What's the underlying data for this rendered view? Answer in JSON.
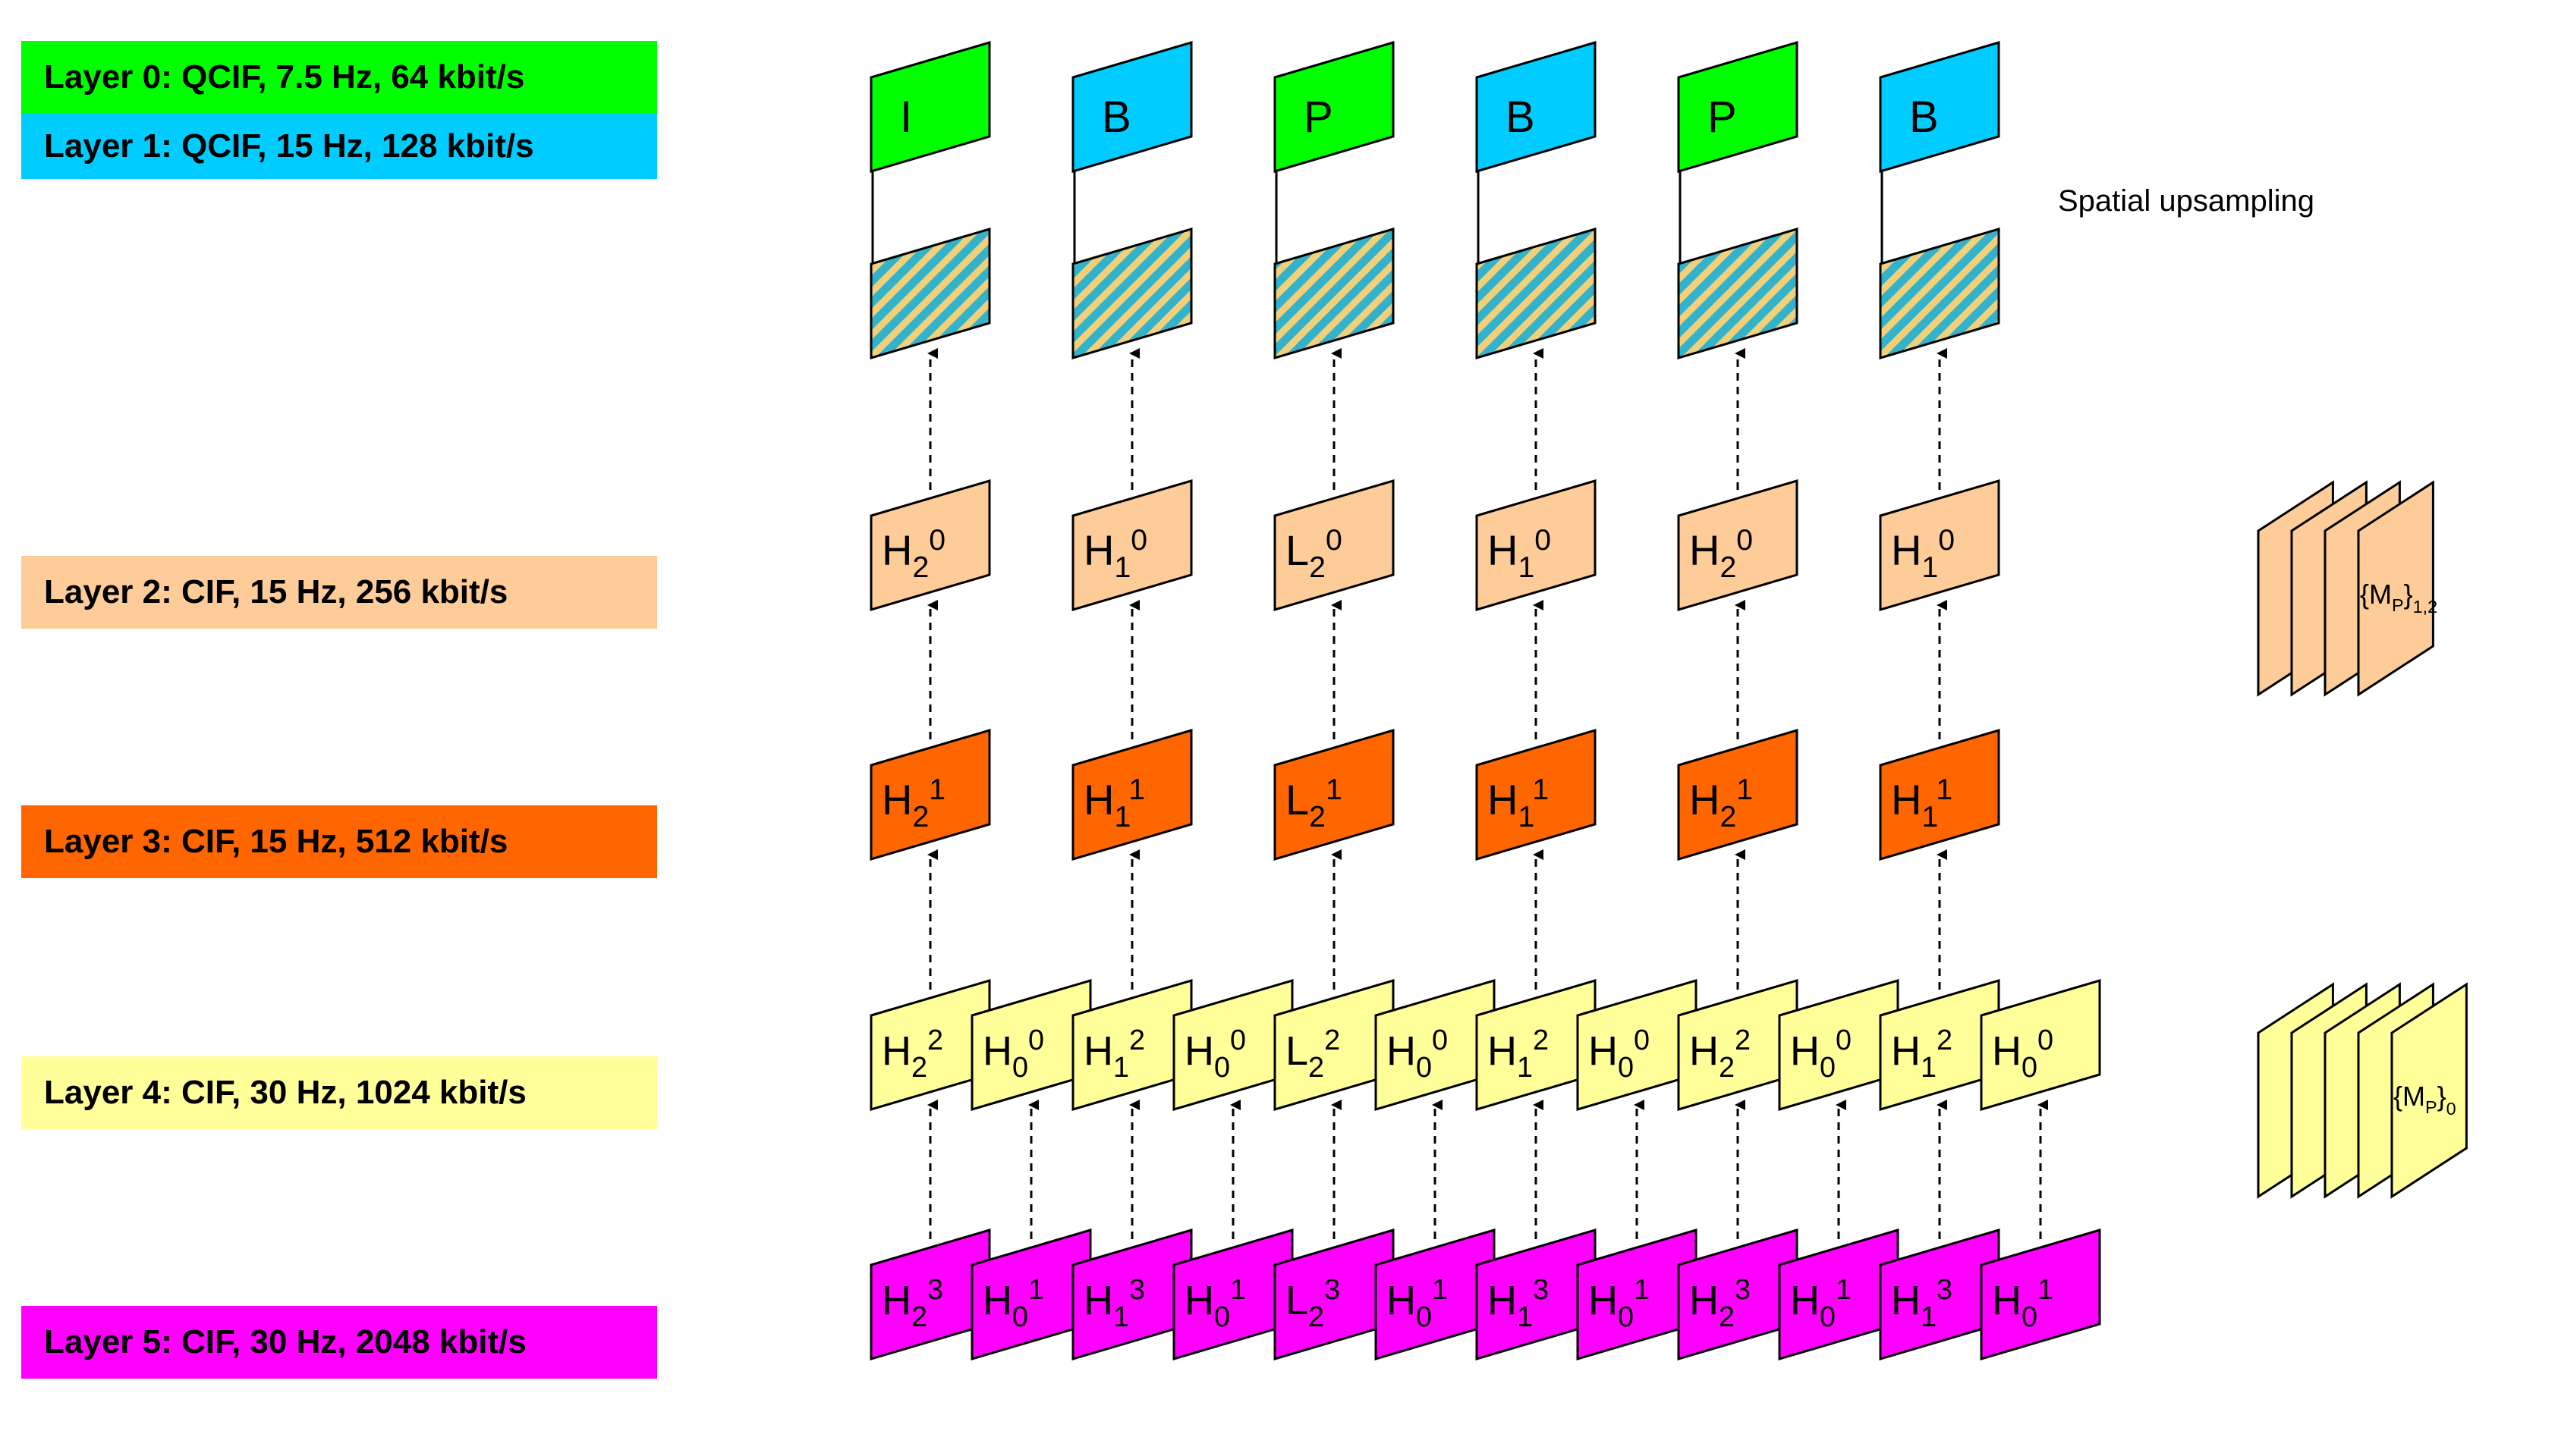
{
  "colors": {
    "layer0": "#00ff00",
    "layer1": "#00ccff",
    "layer2": "#fdcc99",
    "layer3": "#ff6600",
    "layer4": "#ffff99",
    "layer5": "#ff00ff",
    "upsample_hatch_base": "#33b2cc",
    "upsample_hatch_stripe": "#f2d07a",
    "stroke": "#000000"
  },
  "legend": [
    {
      "label": "Layer 0: QCIF, 7.5 Hz, 64 kbit/s",
      "color_key": "layer0"
    },
    {
      "label": "Layer 1: QCIF, 15 Hz, 128 kbit/s",
      "color_key": "layer1"
    },
    {
      "label": "Layer 2: CIF, 15 Hz, 256 kbit/s",
      "color_key": "layer2"
    },
    {
      "label": "Layer 3: CIF, 15 Hz, 512 kbit/s",
      "color_key": "layer3"
    },
    {
      "label": "Layer 4: CIF, 30 Hz, 1024 kbit/s",
      "color_key": "layer4"
    },
    {
      "label": "Layer 5: CIF, 30 Hz, 2048 kbit/s",
      "color_key": "layer5"
    }
  ],
  "qcif_frames": [
    {
      "label": "I",
      "layer": 0
    },
    {
      "label": "B",
      "layer": 1
    },
    {
      "label": "P",
      "layer": 0
    },
    {
      "label": "B",
      "layer": 1
    },
    {
      "label": "P",
      "layer": 0
    },
    {
      "label": "B",
      "layer": 1
    }
  ],
  "upsampling_label": "Spatial upsampling",
  "layer2_frames": [
    {
      "base": "H",
      "sub": "2",
      "sup": "0"
    },
    {
      "base": "H",
      "sub": "1",
      "sup": "0"
    },
    {
      "base": "L",
      "sub": "2",
      "sup": "0"
    },
    {
      "base": "H",
      "sub": "1",
      "sup": "0"
    },
    {
      "base": "H",
      "sub": "2",
      "sup": "0"
    },
    {
      "base": "H",
      "sub": "1",
      "sup": "0"
    }
  ],
  "layer3_frames": [
    {
      "base": "H",
      "sub": "2",
      "sup": "1"
    },
    {
      "base": "H",
      "sub": "1",
      "sup": "1"
    },
    {
      "base": "L",
      "sub": "2",
      "sup": "1"
    },
    {
      "base": "H",
      "sub": "1",
      "sup": "1"
    },
    {
      "base": "H",
      "sub": "2",
      "sup": "1"
    },
    {
      "base": "H",
      "sub": "1",
      "sup": "1"
    }
  ],
  "layer4_frames": [
    {
      "base": "H",
      "sub": "2",
      "sup": "2"
    },
    {
      "base": "H",
      "sub": "0",
      "sup": "0"
    },
    {
      "base": "H",
      "sub": "1",
      "sup": "2"
    },
    {
      "base": "H",
      "sub": "0",
      "sup": "0"
    },
    {
      "base": "L",
      "sub": "2",
      "sup": "2"
    },
    {
      "base": "H",
      "sub": "0",
      "sup": "0"
    },
    {
      "base": "H",
      "sub": "1",
      "sup": "2"
    },
    {
      "base": "H",
      "sub": "0",
      "sup": "0"
    },
    {
      "base": "H",
      "sub": "2",
      "sup": "2"
    },
    {
      "base": "H",
      "sub": "0",
      "sup": "0"
    },
    {
      "base": "H",
      "sub": "1",
      "sup": "2"
    },
    {
      "base": "H",
      "sub": "0",
      "sup": "0"
    }
  ],
  "layer5_frames": [
    {
      "base": "H",
      "sub": "2",
      "sup": "3"
    },
    {
      "base": "H",
      "sub": "0",
      "sup": "1"
    },
    {
      "base": "H",
      "sub": "1",
      "sup": "3"
    },
    {
      "base": "H",
      "sub": "0",
      "sup": "1"
    },
    {
      "base": "L",
      "sub": "2",
      "sup": "3"
    },
    {
      "base": "H",
      "sub": "0",
      "sup": "1"
    },
    {
      "base": "H",
      "sub": "1",
      "sup": "3"
    },
    {
      "base": "H",
      "sub": "0",
      "sup": "1"
    },
    {
      "base": "H",
      "sub": "2",
      "sup": "3"
    },
    {
      "base": "H",
      "sub": "0",
      "sup": "1"
    },
    {
      "base": "H",
      "sub": "1",
      "sup": "3"
    },
    {
      "base": "H",
      "sub": "0",
      "sup": "1"
    }
  ],
  "motion_stacks": [
    {
      "label_base": "{M",
      "label_sub_inner": "P",
      "label_close": "}",
      "label_sub_outer": "1,2",
      "layer": 2
    },
    {
      "label_base": "{M",
      "label_sub_inner": "P",
      "label_close": "}",
      "label_sub_outer": "0",
      "layer": 4
    }
  ]
}
